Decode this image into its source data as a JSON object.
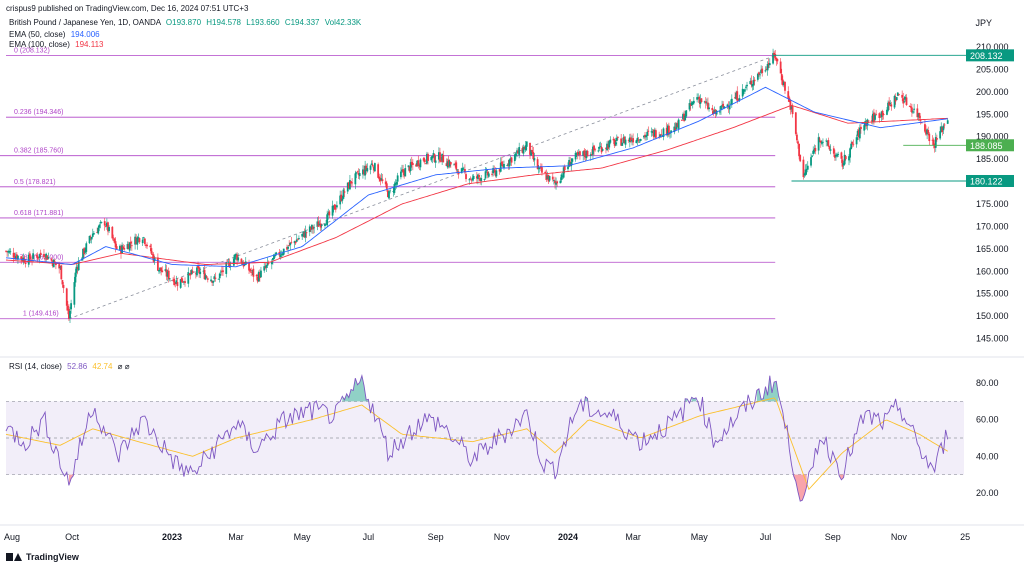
{
  "header": {
    "publisher": "crispus9 published on TradingView.com, Dec 16, 2024 07:51 UTC+3",
    "symbol": "British Pound / Japanese Yen, 1D, OANDA",
    "ohlc_o": "O193.870",
    "ohlc_h": "H194.578",
    "ohlc_l": "L193.660",
    "ohlc_c": "C194.337",
    "volume": "Vol42.33K",
    "ema50_label": "EMA (50, close)",
    "ema50_value": "194.006",
    "ema100_label": "EMA (100, close)",
    "ema100_value": "194.113",
    "currency": "JPY"
  },
  "rsi_panel": {
    "label": "RSI (14, close)",
    "rsi_value": "52.86",
    "ma_value": "42.74",
    "suffix": "⌀ ⌀"
  },
  "footer": {
    "brand": "TradingView"
  },
  "colors": {
    "up": "#089981",
    "down": "#f23645",
    "ema50": "#2962ff",
    "ema100": "#f23645",
    "fib": "#b045c8",
    "rsi": "#7e57c2",
    "rsi_ma": "#fbc02d",
    "price_tag": "#089981",
    "support_tag": "#4caf50"
  },
  "chart_data": [
    {
      "type": "candlestick",
      "title": "British Pound / Japanese Yen, 1D, OANDA",
      "y_unit": "JPY",
      "ylim": [
        142,
        212
      ],
      "y_ticks": [
        145,
        150,
        155,
        160,
        165,
        170,
        175,
        180,
        185,
        190,
        195,
        200,
        205,
        210
      ],
      "x_tick_labels": [
        "Aug",
        "Oct",
        "2023",
        "Mar",
        "May",
        "Jul",
        "Sep",
        "Nov",
        "2024",
        "Mar",
        "May",
        "Jul",
        "Sep",
        "Nov",
        "25"
      ],
      "anchors": [
        [
          "2022-08-01",
          164.5
        ],
        [
          "2022-08-20",
          162.5
        ],
        [
          "2022-09-05",
          164.0
        ],
        [
          "2022-09-20",
          160.5
        ],
        [
          "2022-09-28",
          149.5
        ],
        [
          "2022-10-05",
          161.0
        ],
        [
          "2022-10-20",
          168.5
        ],
        [
          "2022-10-31",
          171.0
        ],
        [
          "2022-11-12",
          164.5
        ],
        [
          "2022-12-05",
          168.0
        ],
        [
          "2022-12-20",
          160.5
        ],
        [
          "2023-01-06",
          157.5
        ],
        [
          "2023-01-25",
          160.0
        ],
        [
          "2023-02-10",
          158.0
        ],
        [
          "2023-03-01",
          163.5
        ],
        [
          "2023-03-20",
          158.5
        ],
        [
          "2023-04-10",
          164.0
        ],
        [
          "2023-05-01",
          168.0
        ],
        [
          "2023-05-25",
          172.0
        ],
        [
          "2023-06-15",
          180.0
        ],
        [
          "2023-07-05",
          184.0
        ],
        [
          "2023-07-20",
          177.0
        ],
        [
          "2023-08-01",
          182.0
        ],
        [
          "2023-08-20",
          185.0
        ],
        [
          "2023-09-05",
          185.5
        ],
        [
          "2023-10-05",
          180.5
        ],
        [
          "2023-10-25",
          182.0
        ],
        [
          "2023-11-24",
          188.0
        ],
        [
          "2023-12-05",
          182.5
        ],
        [
          "2023-12-20",
          179.5
        ],
        [
          "2024-01-05",
          185.0
        ],
        [
          "2024-02-10",
          188.5
        ],
        [
          "2024-03-08",
          190.0
        ],
        [
          "2024-04-10",
          192.0
        ],
        [
          "2024-04-29",
          199.0
        ],
        [
          "2024-05-15",
          195.0
        ],
        [
          "2024-06-10",
          200.0
        ],
        [
          "2024-07-10",
          208.1
        ],
        [
          "2024-07-25",
          196.0
        ],
        [
          "2024-08-05",
          181.0
        ],
        [
          "2024-08-20",
          190.0
        ],
        [
          "2024-09-10",
          184.0
        ],
        [
          "2024-09-30",
          193.0
        ],
        [
          "2024-10-20",
          196.0
        ],
        [
          "2024-11-01",
          199.5
        ],
        [
          "2024-11-20",
          194.5
        ],
        [
          "2024-12-03",
          188.1
        ],
        [
          "2024-12-16",
          194.3
        ]
      ],
      "ema50_anchors": [
        [
          "2022-08-01",
          163.0
        ],
        [
          "2022-10-01",
          161.5
        ],
        [
          "2022-11-01",
          165.5
        ],
        [
          "2023-01-01",
          161.5
        ],
        [
          "2023-03-01",
          161.0
        ],
        [
          "2023-05-01",
          165.5
        ],
        [
          "2023-07-01",
          177.0
        ],
        [
          "2023-09-01",
          181.5
        ],
        [
          "2023-11-01",
          183.0
        ],
        [
          "2024-01-01",
          183.5
        ],
        [
          "2024-03-01",
          187.5
        ],
        [
          "2024-05-01",
          193.5
        ],
        [
          "2024-07-01",
          201.0
        ],
        [
          "2024-08-15",
          195.5
        ],
        [
          "2024-10-15",
          192.0
        ],
        [
          "2024-12-16",
          194.0
        ]
      ],
      "ema100_anchors": [
        [
          "2022-08-01",
          162.5
        ],
        [
          "2022-10-01",
          161.5
        ],
        [
          "2022-11-15",
          164.0
        ],
        [
          "2023-02-01",
          161.5
        ],
        [
          "2023-04-01",
          162.0
        ],
        [
          "2023-06-01",
          167.5
        ],
        [
          "2023-08-01",
          175.0
        ],
        [
          "2023-10-01",
          179.5
        ],
        [
          "2023-12-01",
          181.5
        ],
        [
          "2024-02-01",
          183.0
        ],
        [
          "2024-04-01",
          187.0
        ],
        [
          "2024-06-01",
          192.0
        ],
        [
          "2024-07-25",
          197.0
        ],
        [
          "2024-09-15",
          193.0
        ],
        [
          "2024-12-16",
          194.1
        ]
      ],
      "fib_levels": [
        {
          "label": "0 (208.132)",
          "value": 208.132
        },
        {
          "label": "0.236 (194.346)",
          "value": 194.346
        },
        {
          "label": "0.382 (185.760)",
          "value": 185.76
        },
        {
          "label": "0.5 (178.821)",
          "value": 178.821
        },
        {
          "label": "0.618 (171.881)",
          "value": 171.881
        },
        {
          "label": "0.786 (162.000)",
          "value": 162.0
        },
        {
          "label": "1 (149.416)",
          "value": 149.416
        }
      ],
      "trend_line": [
        [
          "2022-09-28",
          149.4
        ],
        [
          "2024-07-10",
          208.1
        ]
      ],
      "price_tags": [
        {
          "label": "208.132",
          "value": 208.132,
          "line_from": "2024-07-08",
          "color": "#089981"
        },
        {
          "label": "188.085",
          "value": 188.085,
          "line_from": "2024-11-05",
          "color": "#4caf50"
        },
        {
          "label": "180.122",
          "value": 180.122,
          "line_from": "2024-07-25",
          "color": "#089981"
        }
      ]
    },
    {
      "type": "line",
      "title": "RSI (14, close)",
      "ylim": [
        8,
        86
      ],
      "y_ticks": [
        20,
        40,
        60,
        80
      ],
      "bands": {
        "upper": 70,
        "middle": 50,
        "lower": 30
      },
      "anchors": [
        [
          "2022-08-01",
          55
        ],
        [
          "2022-08-20",
          48
        ],
        [
          "2022-09-05",
          60
        ],
        [
          "2022-09-28",
          25
        ],
        [
          "2022-10-20",
          68
        ],
        [
          "2022-11-12",
          40
        ],
        [
          "2022-12-05",
          60
        ],
        [
          "2023-01-06",
          35
        ],
        [
          "2023-01-20",
          30
        ],
        [
          "2023-02-10",
          45
        ],
        [
          "2023-03-01",
          58
        ],
        [
          "2023-03-20",
          44
        ],
        [
          "2023-04-15",
          60
        ],
        [
          "2023-05-10",
          65
        ],
        [
          "2023-06-01",
          62
        ],
        [
          "2023-06-25",
          82
        ],
        [
          "2023-07-20",
          42
        ],
        [
          "2023-08-20",
          60
        ],
        [
          "2023-09-05",
          58
        ],
        [
          "2023-10-05",
          38
        ],
        [
          "2023-11-24",
          63
        ],
        [
          "2023-12-10",
          35
        ],
        [
          "2023-12-20",
          33
        ],
        [
          "2024-01-10",
          68
        ],
        [
          "2024-02-10",
          62
        ],
        [
          "2024-03-08",
          48
        ],
        [
          "2024-04-10",
          60
        ],
        [
          "2024-04-29",
          75
        ],
        [
          "2024-05-15",
          48
        ],
        [
          "2024-06-10",
          65
        ],
        [
          "2024-07-10",
          82
        ],
        [
          "2024-07-25",
          40
        ],
        [
          "2024-08-05",
          12
        ],
        [
          "2024-08-20",
          52
        ],
        [
          "2024-09-10",
          32
        ],
        [
          "2024-09-30",
          62
        ],
        [
          "2024-10-20",
          58
        ],
        [
          "2024-11-01",
          68
        ],
        [
          "2024-11-20",
          44
        ],
        [
          "2024-12-03",
          32
        ],
        [
          "2024-12-16",
          52.86
        ]
      ],
      "ma_anchors": [
        [
          "2022-08-01",
          52
        ],
        [
          "2022-09-20",
          46
        ],
        [
          "2022-10-20",
          55
        ],
        [
          "2022-12-01",
          48
        ],
        [
          "2023-01-20",
          40
        ],
        [
          "2023-03-01",
          50
        ],
        [
          "2023-05-10",
          60
        ],
        [
          "2023-06-25",
          68
        ],
        [
          "2023-08-01",
          52
        ],
        [
          "2023-10-05",
          48
        ],
        [
          "2023-11-24",
          55
        ],
        [
          "2023-12-20",
          42
        ],
        [
          "2024-01-20",
          60
        ],
        [
          "2024-03-08",
          50
        ],
        [
          "2024-05-01",
          62
        ],
        [
          "2024-07-10",
          72
        ],
        [
          "2024-08-10",
          22
        ],
        [
          "2024-09-10",
          42
        ],
        [
          "2024-10-20",
          60
        ],
        [
          "2024-11-20",
          52
        ],
        [
          "2024-12-16",
          42.74
        ]
      ]
    }
  ]
}
